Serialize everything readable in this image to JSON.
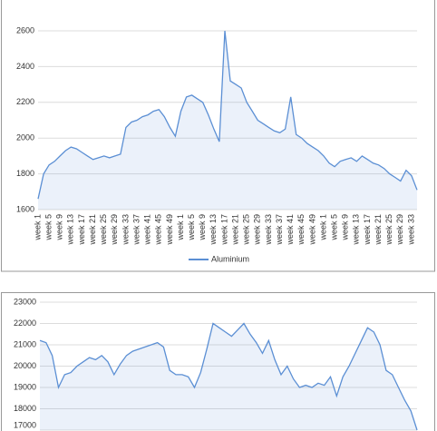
{
  "chart_data": [
    {
      "type": "line",
      "categories": [
        "week 1",
        null,
        "week 5",
        null,
        "week 9",
        null,
        "week 13",
        null,
        "week 17",
        null,
        "week 21",
        null,
        "week 25",
        null,
        "week 29",
        null,
        "week 33",
        null,
        "week 37",
        null,
        "week 41",
        null,
        "week 45",
        null,
        "week 49",
        null,
        "week 1",
        null,
        "week 5",
        null,
        "week 9",
        null,
        "week 13",
        null,
        "week 17",
        null,
        "week 21",
        null,
        "week 25",
        null,
        "week 29",
        null,
        "week 33",
        null,
        "week 37",
        null,
        "week 41",
        null,
        "week 45",
        null,
        "week 49",
        null,
        "week 1",
        null,
        "week 5",
        null,
        "week 9",
        null,
        "week 13",
        null,
        "week 17",
        null,
        "week 21",
        null,
        "week 25",
        null,
        "week 29",
        null,
        "week 33",
        null
      ],
      "series": [
        {
          "name": "Aluminium",
          "color": "#5b8fd4",
          "values": [
            1660,
            1800,
            1850,
            1870,
            1900,
            1930,
            1950,
            1940,
            1920,
            1900,
            1880,
            1890,
            1900,
            1890,
            1900,
            1910,
            2060,
            2090,
            2100,
            2120,
            2130,
            2150,
            2160,
            2120,
            2060,
            2010,
            2150,
            2230,
            2240,
            2220,
            2200,
            2130,
            2050,
            1980,
            2600,
            2320,
            2300,
            2280,
            2200,
            2150,
            2100,
            2080,
            2060,
            2040,
            2030,
            2050,
            2230,
            2020,
            2000,
            1970,
            1950,
            1930,
            1900,
            1860,
            1840,
            1870,
            1880,
            1890,
            1870,
            1900,
            1880,
            1860,
            1850,
            1830,
            1800,
            1780,
            1760,
            1820,
            1790,
            1710
          ]
        }
      ],
      "ylim": [
        1600,
        2600
      ],
      "yticks": [
        1600,
        1800,
        2000,
        2200,
        2400,
        2600
      ],
      "grid": true,
      "legend": "bottom"
    },
    {
      "type": "line",
      "series": [
        {
          "color": "#5b8fd4",
          "values": [
            21200,
            21100,
            20500,
            19000,
            19600,
            19700,
            20000,
            20200,
            20400,
            20300,
            20500,
            20200,
            19600,
            20100,
            20500,
            20700,
            20800,
            20900,
            21000,
            21100,
            20900,
            19800,
            19600,
            19600,
            19500,
            19000,
            19700,
            20800,
            22000,
            21800,
            21600,
            21400,
            21700,
            22000,
            21500,
            21100,
            20600,
            21200,
            20300,
            19600,
            20000,
            19400,
            19000,
            19100,
            19000,
            19200,
            19100,
            19500,
            18600,
            19500,
            20000,
            20600,
            21200,
            21800,
            21600,
            21000,
            19800,
            19600,
            19000,
            18400,
            17900,
            17000
          ]
        }
      ],
      "ylim": [
        17000,
        23000
      ],
      "yticks": [
        17000,
        18000,
        19000,
        20000,
        21000,
        22000,
        23000
      ],
      "grid": true
    }
  ]
}
